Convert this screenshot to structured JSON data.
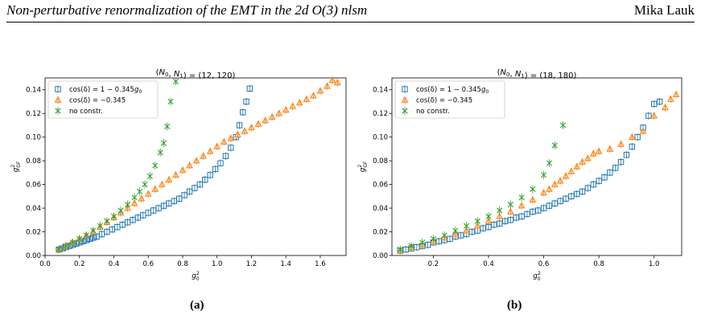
{
  "header": {
    "title": "Non-perturbative renormalization of the EMT in the 2d O(3) nlsm",
    "author": "Mika Lauk"
  },
  "figure": {
    "sublabels": [
      "(a)",
      "(b)"
    ]
  },
  "chart_data": [
    {
      "type": "scatter",
      "title": "(N_0, N_1) = (12, 120)",
      "xlabel": "g_0^2",
      "ylabel": "g_GF^2",
      "xlim": [
        0.0,
        1.75
      ],
      "ylim": [
        0.0,
        0.15
      ],
      "xticks": [
        "0.0",
        "0.2",
        "0.4",
        "0.6",
        "0.8",
        "1.0",
        "1.2",
        "1.4",
        "1.6"
      ],
      "yticks": [
        "0.00",
        "0.02",
        "0.04",
        "0.06",
        "0.08",
        "0.10",
        "0.12",
        "0.14"
      ],
      "grid": false,
      "legend_position": "top-left",
      "series": [
        {
          "name": "cos(δ) = 1 − 0.345g_0",
          "marker": "square",
          "color": "#1f77b4",
          "points": [
            [
              0.08,
              0.005
            ],
            [
              0.1,
              0.006
            ],
            [
              0.12,
              0.007
            ],
            [
              0.14,
              0.008
            ],
            [
              0.16,
              0.009
            ],
            [
              0.18,
              0.01
            ],
            [
              0.2,
              0.011
            ],
            [
              0.22,
              0.012
            ],
            [
              0.24,
              0.013
            ],
            [
              0.26,
              0.014
            ],
            [
              0.28,
              0.015
            ],
            [
              0.3,
              0.016
            ],
            [
              0.33,
              0.018
            ],
            [
              0.36,
              0.02
            ],
            [
              0.39,
              0.022
            ],
            [
              0.42,
              0.024
            ],
            [
              0.45,
              0.026
            ],
            [
              0.48,
              0.028
            ],
            [
              0.51,
              0.03
            ],
            [
              0.54,
              0.032
            ],
            [
              0.57,
              0.034
            ],
            [
              0.6,
              0.036
            ],
            [
              0.63,
              0.038
            ],
            [
              0.66,
              0.04
            ],
            [
              0.69,
              0.042
            ],
            [
              0.72,
              0.044
            ],
            [
              0.75,
              0.046
            ],
            [
              0.78,
              0.048
            ],
            [
              0.81,
              0.051
            ],
            [
              0.84,
              0.054
            ],
            [
              0.87,
              0.057
            ],
            [
              0.9,
              0.06
            ],
            [
              0.93,
              0.064
            ],
            [
              0.96,
              0.068
            ],
            [
              0.99,
              0.073
            ],
            [
              1.02,
              0.078
            ],
            [
              1.05,
              0.084
            ],
            [
              1.08,
              0.091
            ],
            [
              1.11,
              0.1
            ],
            [
              1.13,
              0.11
            ],
            [
              1.15,
              0.121
            ],
            [
              1.17,
              0.13
            ],
            [
              1.19,
              0.141
            ]
          ]
        },
        {
          "name": "cos(δ) = −0.345",
          "marker": "triangle",
          "color": "#ff7f0e",
          "points": [
            [
              0.08,
              0.005
            ],
            [
              0.12,
              0.008
            ],
            [
              0.16,
              0.011
            ],
            [
              0.2,
              0.014
            ],
            [
              0.24,
              0.017
            ],
            [
              0.28,
              0.02
            ],
            [
              0.32,
              0.024
            ],
            [
              0.36,
              0.028
            ],
            [
              0.4,
              0.032
            ],
            [
              0.44,
              0.036
            ],
            [
              0.48,
              0.04
            ],
            [
              0.52,
              0.044
            ],
            [
              0.56,
              0.048
            ],
            [
              0.6,
              0.052
            ],
            [
              0.64,
              0.056
            ],
            [
              0.68,
              0.06
            ],
            [
              0.72,
              0.064
            ],
            [
              0.76,
              0.068
            ],
            [
              0.8,
              0.072
            ],
            [
              0.84,
              0.076
            ],
            [
              0.88,
              0.08
            ],
            [
              0.92,
              0.084
            ],
            [
              0.96,
              0.088
            ],
            [
              1.0,
              0.092
            ],
            [
              1.04,
              0.096
            ],
            [
              1.08,
              0.099
            ],
            [
              1.12,
              0.102
            ],
            [
              1.16,
              0.105
            ],
            [
              1.2,
              0.108
            ],
            [
              1.24,
              0.111
            ],
            [
              1.28,
              0.114
            ],
            [
              1.32,
              0.117
            ],
            [
              1.36,
              0.12
            ],
            [
              1.4,
              0.123
            ],
            [
              1.44,
              0.126
            ],
            [
              1.48,
              0.129
            ],
            [
              1.52,
              0.132
            ],
            [
              1.56,
              0.135
            ],
            [
              1.6,
              0.139
            ],
            [
              1.64,
              0.143
            ],
            [
              1.67,
              0.148
            ],
            [
              1.7,
              0.146
            ]
          ]
        },
        {
          "name": "no constr.",
          "marker": "x",
          "color": "#2ca02c",
          "points": [
            [
              0.08,
              0.005
            ],
            [
              0.12,
              0.008
            ],
            [
              0.16,
              0.011
            ],
            [
              0.2,
              0.014
            ],
            [
              0.24,
              0.017
            ],
            [
              0.28,
              0.021
            ],
            [
              0.32,
              0.025
            ],
            [
              0.36,
              0.029
            ],
            [
              0.4,
              0.033
            ],
            [
              0.44,
              0.038
            ],
            [
              0.48,
              0.043
            ],
            [
              0.52,
              0.049
            ],
            [
              0.55,
              0.054
            ],
            [
              0.58,
              0.06
            ],
            [
              0.61,
              0.067
            ],
            [
              0.64,
              0.076
            ],
            [
              0.67,
              0.087
            ],
            [
              0.69,
              0.095
            ],
            [
              0.71,
              0.109
            ],
            [
              0.73,
              0.13
            ],
            [
              0.76,
              0.147
            ]
          ]
        }
      ]
    },
    {
      "type": "scatter",
      "title": "(N_0, N_1) = (18, 180)",
      "xlabel": "g_0^2",
      "ylabel": "g_GF^2",
      "xlim": [
        0.05,
        1.1
      ],
      "ylim": [
        0.0,
        0.15
      ],
      "xticks": [
        "0.2",
        "0.4",
        "0.6",
        "0.8",
        "1.0"
      ],
      "yticks": [
        "0.00",
        "0.02",
        "0.04",
        "0.06",
        "0.08",
        "0.10",
        "0.12",
        "0.14"
      ],
      "grid": false,
      "legend_position": "top-left",
      "series": [
        {
          "name": "cos(δ) = 1 − 0.345g_0",
          "marker": "square",
          "color": "#1f77b4",
          "points": [
            [
              0.08,
              0.004
            ],
            [
              0.1,
              0.005
            ],
            [
              0.12,
              0.006
            ],
            [
              0.14,
              0.007
            ],
            [
              0.16,
              0.008
            ],
            [
              0.18,
              0.009
            ],
            [
              0.2,
              0.011
            ],
            [
              0.22,
              0.012
            ],
            [
              0.24,
              0.013
            ],
            [
              0.26,
              0.014
            ],
            [
              0.28,
              0.016
            ],
            [
              0.3,
              0.017
            ],
            [
              0.32,
              0.018
            ],
            [
              0.34,
              0.02
            ],
            [
              0.36,
              0.021
            ],
            [
              0.38,
              0.023
            ],
            [
              0.4,
              0.024
            ],
            [
              0.42,
              0.026
            ],
            [
              0.44,
              0.027
            ],
            [
              0.46,
              0.029
            ],
            [
              0.48,
              0.03
            ],
            [
              0.5,
              0.032
            ],
            [
              0.52,
              0.033
            ],
            [
              0.54,
              0.035
            ],
            [
              0.56,
              0.037
            ],
            [
              0.58,
              0.038
            ],
            [
              0.6,
              0.04
            ],
            [
              0.62,
              0.042
            ],
            [
              0.64,
              0.044
            ],
            [
              0.66,
              0.046
            ],
            [
              0.68,
              0.048
            ],
            [
              0.7,
              0.05
            ],
            [
              0.72,
              0.052
            ],
            [
              0.74,
              0.054
            ],
            [
              0.76,
              0.057
            ],
            [
              0.78,
              0.06
            ],
            [
              0.8,
              0.063
            ],
            [
              0.82,
              0.066
            ],
            [
              0.84,
              0.07
            ],
            [
              0.86,
              0.074
            ],
            [
              0.88,
              0.079
            ],
            [
              0.9,
              0.085
            ],
            [
              0.92,
              0.092
            ],
            [
              0.94,
              0.1
            ],
            [
              0.96,
              0.108
            ],
            [
              0.98,
              0.118
            ],
            [
              1.0,
              0.128
            ],
            [
              1.02,
              0.13
            ]
          ]
        },
        {
          "name": "cos(δ) = −0.345",
          "marker": "triangle",
          "color": "#ff7f0e",
          "points": [
            [
              0.08,
              0.004
            ],
            [
              0.12,
              0.007
            ],
            [
              0.16,
              0.009
            ],
            [
              0.2,
              0.012
            ],
            [
              0.24,
              0.015
            ],
            [
              0.28,
              0.018
            ],
            [
              0.32,
              0.021
            ],
            [
              0.36,
              0.025
            ],
            [
              0.4,
              0.029
            ],
            [
              0.44,
              0.033
            ],
            [
              0.48,
              0.037
            ],
            [
              0.52,
              0.042
            ],
            [
              0.56,
              0.047
            ],
            [
              0.6,
              0.053
            ],
            [
              0.62,
              0.056
            ],
            [
              0.64,
              0.06
            ],
            [
              0.66,
              0.063
            ],
            [
              0.68,
              0.067
            ],
            [
              0.7,
              0.071
            ],
            [
              0.72,
              0.075
            ],
            [
              0.74,
              0.079
            ],
            [
              0.76,
              0.082
            ],
            [
              0.78,
              0.086
            ],
            [
              0.8,
              0.088
            ],
            [
              0.84,
              0.09
            ],
            [
              0.88,
              0.094
            ],
            [
              0.92,
              0.1
            ],
            [
              0.96,
              0.105
            ],
            [
              1.0,
              0.118
            ],
            [
              1.04,
              0.125
            ],
            [
              1.06,
              0.132
            ],
            [
              1.08,
              0.136
            ]
          ]
        },
        {
          "name": "no constr.",
          "marker": "x",
          "color": "#2ca02c",
          "points": [
            [
              0.08,
              0.005
            ],
            [
              0.12,
              0.008
            ],
            [
              0.16,
              0.011
            ],
            [
              0.2,
              0.014
            ],
            [
              0.24,
              0.017
            ],
            [
              0.28,
              0.021
            ],
            [
              0.32,
              0.025
            ],
            [
              0.36,
              0.029
            ],
            [
              0.4,
              0.033
            ],
            [
              0.44,
              0.038
            ],
            [
              0.48,
              0.043
            ],
            [
              0.52,
              0.049
            ],
            [
              0.56,
              0.056
            ],
            [
              0.6,
              0.068
            ],
            [
              0.62,
              0.078
            ],
            [
              0.64,
              0.093
            ],
            [
              0.67,
              0.11
            ]
          ]
        }
      ]
    }
  ]
}
